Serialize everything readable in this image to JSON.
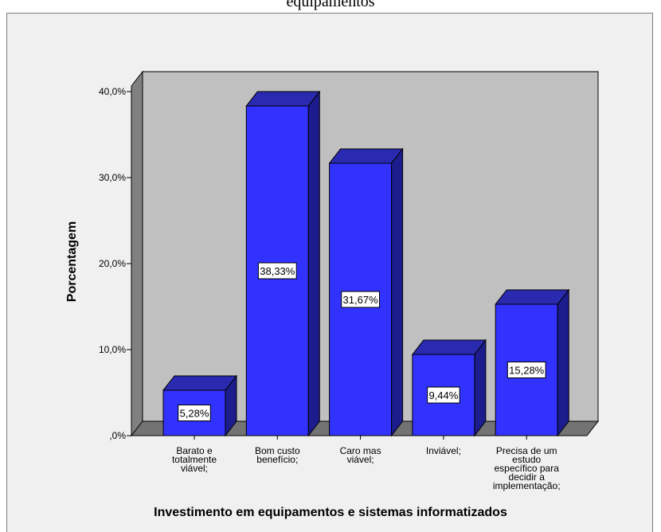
{
  "top_caption": "equipamentos",
  "chart_data": {
    "type": "bar",
    "categories": [
      "Barato e totalmente viável;",
      "Bom custo benefício;",
      "Caro mas viável;",
      "Inviável;",
      "Precisa de um estudo específico para decidir a implementação;"
    ],
    "category_lines": [
      [
        "Barato e",
        "totalmente",
        "viável;"
      ],
      [
        "Bom custo",
        "benefício;"
      ],
      [
        "Caro mas",
        "viável;"
      ],
      [
        "Inviável;"
      ],
      [
        "Precisa de um",
        "estudo",
        "específico para",
        "decidir a",
        "implementação;"
      ]
    ],
    "values": [
      5.28,
      38.33,
      31.67,
      9.44,
      15.28
    ],
    "data_labels": [
      "5,28%",
      "38,33%",
      "31,67%",
      "9,44%",
      "15,28%"
    ],
    "title": "",
    "xlabel": "Investimento em equipamentos e sistemas informatizados",
    "ylabel": "Porcentagem",
    "yticks": [
      0,
      10,
      20,
      30,
      40
    ],
    "ytick_labels": [
      ",0%",
      "10,0%",
      "20,0%",
      "30,0%",
      "40,0%"
    ],
    "ylim": [
      0,
      40
    ],
    "grid": false,
    "legend": "none",
    "colors": {
      "bar_front": "#3232ff",
      "bar_top": "#2a2ab0",
      "bar_side": "#1c1c8c",
      "plot_back": "#c0c0c0",
      "plot_side": "#808080",
      "floor": "#737373",
      "frame_bg": "#f0f0f0"
    }
  }
}
